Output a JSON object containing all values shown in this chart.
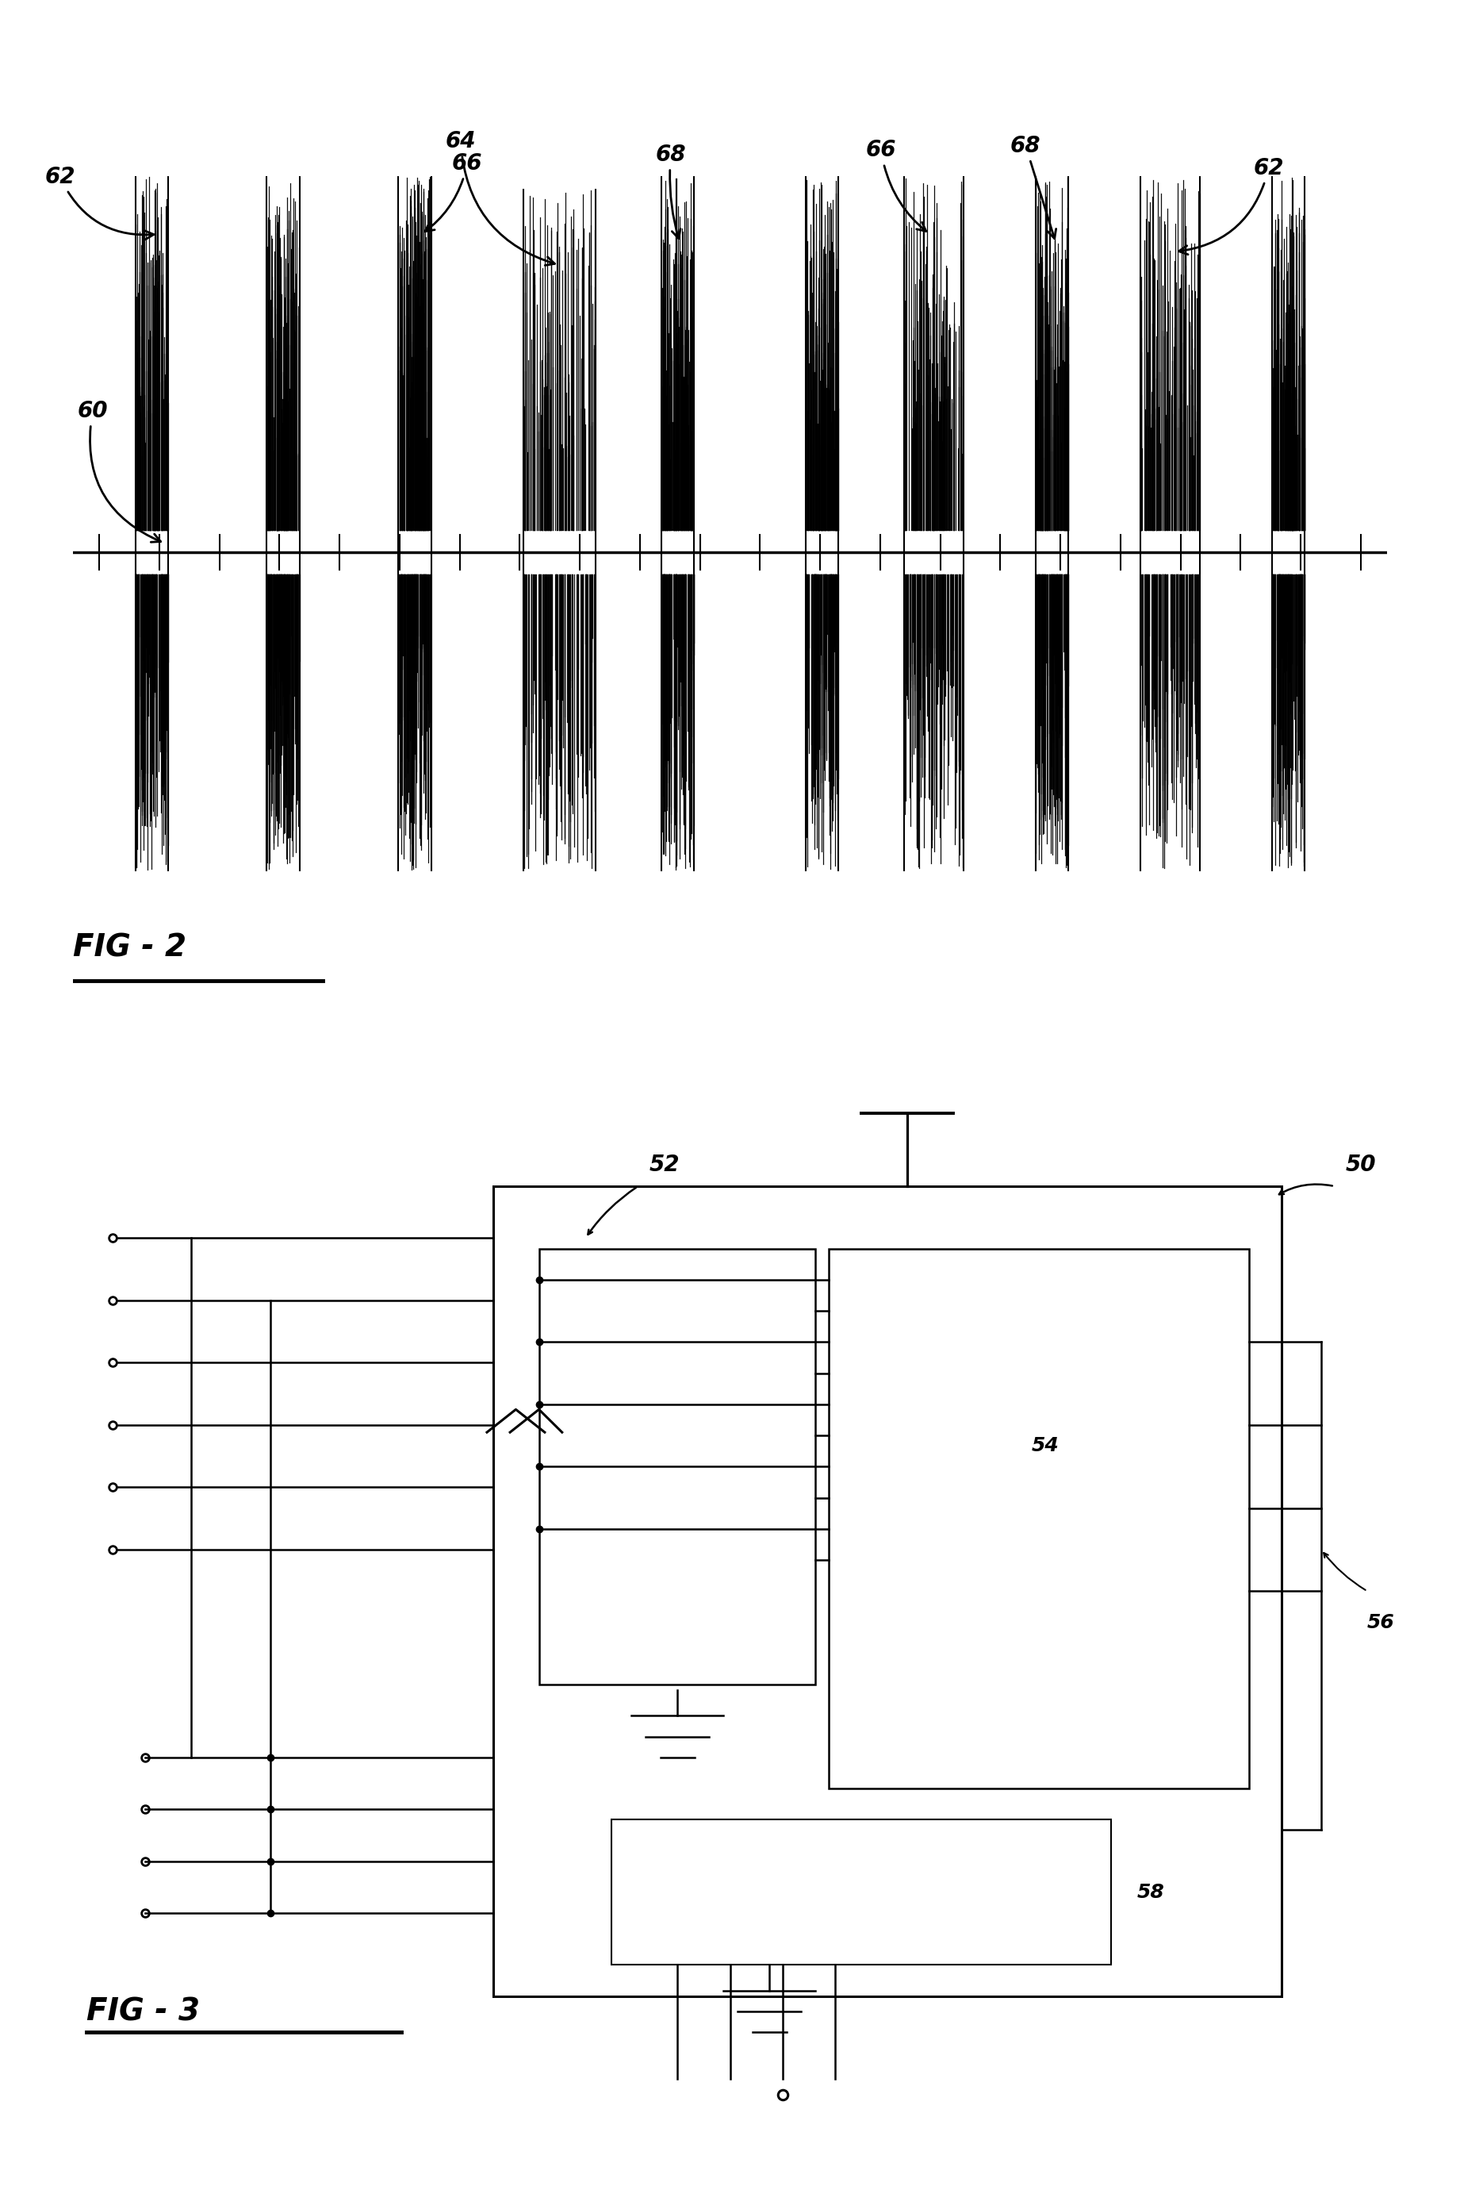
{
  "fig2_title": "FIG - 2",
  "fig3_title": "FIG - 3",
  "label_60": "60",
  "label_62": "62",
  "label_64": "64",
  "label_66": "66",
  "label_68": "68",
  "label_50": "50",
  "label_52": "52",
  "label_54": "54",
  "label_56": "56",
  "label_58": "58",
  "bg_color": "#ffffff",
  "line_color": "#000000",
  "font_size_label": 20,
  "font_size_fig": 28
}
